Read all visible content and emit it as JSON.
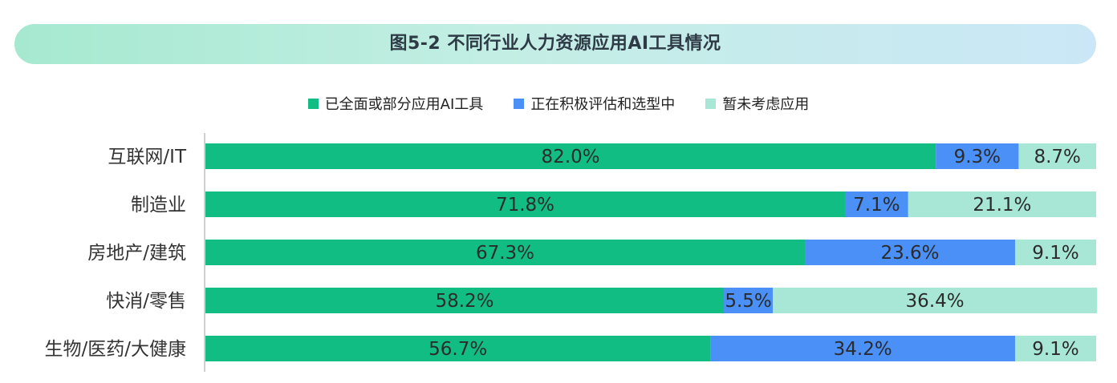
{
  "chart_data": {
    "type": "bar",
    "orientation": "horizontal",
    "stacked": true,
    "title": "图5-2   不同行业人力资源应用AI工具情况",
    "categories": [
      "互联网/IT",
      "制造业",
      "房地产/建筑",
      "快消/零售",
      "生物/医药/大健康"
    ],
    "series": [
      {
        "name": "已全面或部分应用AI工具",
        "values": [
          82.0,
          71.8,
          67.3,
          58.2,
          56.7
        ],
        "labels": [
          "82.0%",
          "71.8%",
          "67.3%",
          "58.2%",
          "56.7%"
        ]
      },
      {
        "name": "正在积极评估和选型中",
        "values": [
          9.3,
          7.1,
          23.6,
          5.5,
          34.2
        ],
        "labels": [
          "9.3%",
          "7.1%",
          "23.6%",
          "5.5%",
          "34.2%"
        ]
      },
      {
        "name": "暂未考虑应用",
        "values": [
          8.7,
          21.1,
          9.1,
          36.4,
          9.1
        ],
        "labels": [
          "8.7%",
          "21.1%",
          "9.1%",
          "36.4%",
          "9.1%"
        ]
      }
    ],
    "xlim": [
      0,
      100
    ],
    "grid": false,
    "legend_position": "top-center"
  },
  "colors": {
    "series": [
      "#12bd83",
      "#4a90f7",
      "#a8e7d6"
    ],
    "axis": "#bfbfbf",
    "label_text": "#2b2b2b",
    "category_text": "#333333"
  }
}
